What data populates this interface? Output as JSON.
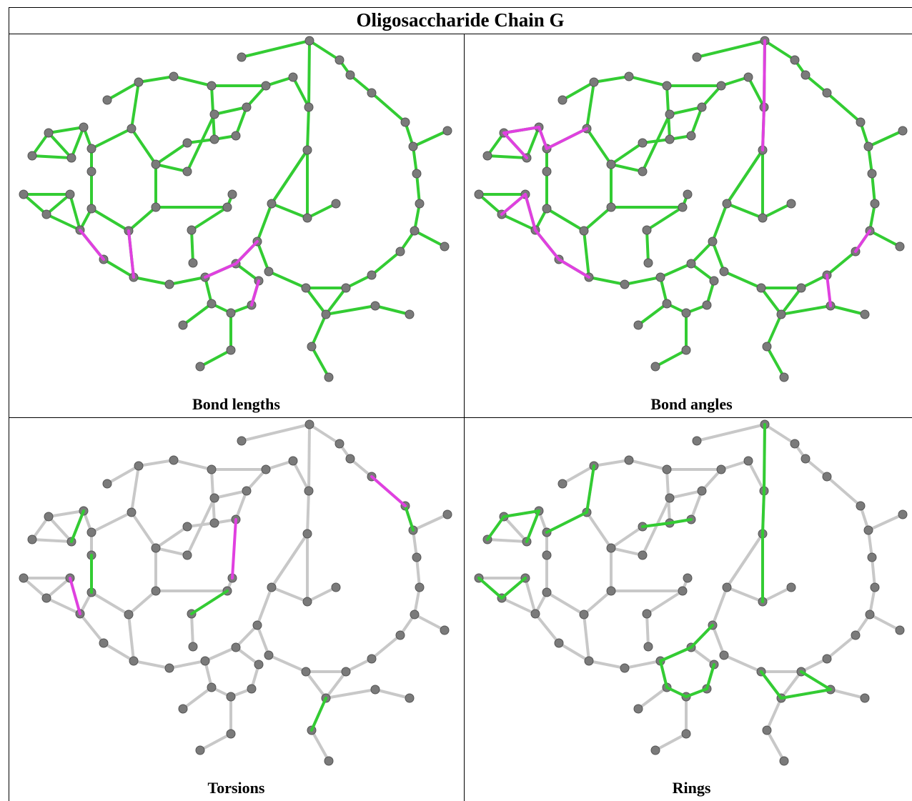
{
  "header": {
    "title": "Oligosaccharide Chain G"
  },
  "panels": [
    {
      "caption": "Bond lengths"
    },
    {
      "caption": "Bond angles"
    },
    {
      "caption": "Torsions"
    },
    {
      "caption": "Rings"
    }
  ]
}
